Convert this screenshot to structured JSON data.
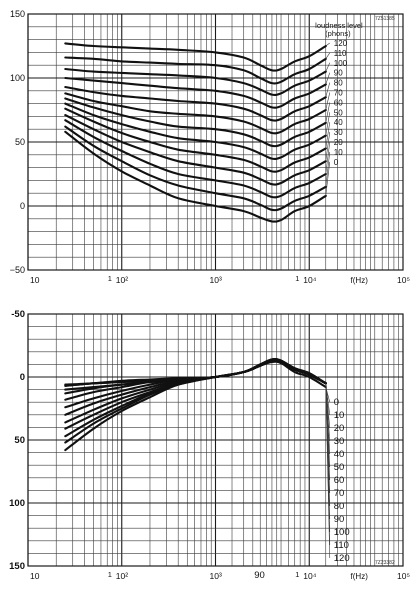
{
  "chart_data": [
    {
      "type": "line",
      "ref": "7Z51385",
      "legend_title_1": "loudness level",
      "legend_title_2": "(phons)",
      "xlabel": "f(Hz)",
      "xscale": "log",
      "xlim": [
        10,
        100000
      ],
      "ylim": [
        -50,
        150
      ],
      "grid": true,
      "x_tick_labels": [
        "10",
        "10²",
        "10³",
        "10⁴",
        "10⁵"
      ],
      "y_tick_labels": [
        "150",
        "100",
        "50",
        "0",
        "−50"
      ],
      "x": [
        25,
        50,
        100,
        200,
        400,
        1000,
        2000,
        3000,
        4000,
        5000,
        7000,
        10000,
        15000
      ],
      "series": [
        {
          "name": "120",
          "values": [
            127,
            125,
            124,
            123,
            122,
            120,
            116,
            110,
            106,
            107,
            113,
            117,
            125
          ]
        },
        {
          "name": "110",
          "values": [
            116,
            115,
            113,
            112,
            111,
            110,
            106,
            100,
            96,
            97,
            103,
            107,
            115
          ]
        },
        {
          "name": "100",
          "values": [
            107,
            105,
            104,
            103,
            102,
            100,
            96,
            91,
            87,
            88,
            94,
            98,
            105
          ]
        },
        {
          "name": "90",
          "values": [
            100,
            98,
            96,
            94,
            92,
            90,
            86,
            81,
            77,
            78,
            84,
            88,
            95
          ]
        },
        {
          "name": "80",
          "values": [
            93,
            89,
            86,
            84,
            82,
            80,
            76,
            71,
            67,
            68,
            74,
            78,
            85
          ]
        },
        {
          "name": "70",
          "values": [
            88,
            82,
            78,
            74,
            72,
            70,
            66,
            61,
            57,
            58,
            64,
            68,
            75
          ]
        },
        {
          "name": "60",
          "values": [
            84,
            77,
            71,
            66,
            62,
            60,
            56,
            51,
            47,
            48,
            54,
            58,
            65
          ]
        },
        {
          "name": "50",
          "values": [
            80,
            71,
            64,
            58,
            53,
            50,
            46,
            41,
            37,
            38,
            44,
            48,
            55
          ]
        },
        {
          "name": "40",
          "values": [
            76,
            66,
            57,
            50,
            44,
            40,
            36,
            31,
            27,
            28,
            34,
            38,
            45
          ]
        },
        {
          "name": "30",
          "values": [
            71,
            60,
            50,
            42,
            35,
            30,
            26,
            21,
            17,
            18,
            24,
            28,
            35
          ]
        },
        {
          "name": "20",
          "values": [
            67,
            54,
            43,
            33,
            25,
            20,
            16,
            11,
            7,
            8,
            14,
            18,
            25
          ]
        },
        {
          "name": "10",
          "values": [
            62,
            47,
            35,
            24,
            16,
            10,
            6,
            1,
            -3,
            -2,
            4,
            8,
            15
          ]
        },
        {
          "name": "0",
          "values": [
            58,
            41,
            27,
            16,
            6,
            0,
            -4,
            -9,
            -12,
            -11,
            -4,
            0,
            8
          ]
        }
      ]
    },
    {
      "type": "line",
      "ref": "7Z23382",
      "xlabel": "f(Hz)",
      "xscale": "log",
      "xlim": [
        10,
        100000
      ],
      "ylim": [
        150,
        -50
      ],
      "grid": true,
      "x_tick_labels": [
        "10",
        "10²",
        "10³",
        "10⁴",
        "10⁵"
      ],
      "y_tick_labels": [
        "-50",
        "0",
        "50",
        "100",
        "150"
      ],
      "annotation": "90",
      "x": [
        25,
        50,
        100,
        200,
        400,
        1000,
        2000,
        3000,
        4000,
        5000,
        7000,
        10000,
        15000
      ],
      "series": [
        {
          "name": "0",
          "values": [
            58,
            41,
            27,
            16,
            6,
            0,
            -4,
            -9,
            -12,
            -11,
            -4,
            0,
            8
          ]
        },
        {
          "name": "10",
          "values": [
            52,
            37,
            25,
            14,
            6,
            0,
            -4,
            -9,
            -13,
            -12,
            -6,
            -2,
            5
          ]
        },
        {
          "name": "20",
          "values": [
            47,
            34,
            23,
            13,
            5,
            0,
            -4,
            -9,
            -13,
            -12,
            -6,
            -2,
            5
          ]
        },
        {
          "name": "30",
          "values": [
            41,
            30,
            20,
            12,
            5,
            0,
            -4,
            -9,
            -13,
            -12,
            -6,
            -2,
            5
          ]
        },
        {
          "name": "40",
          "values": [
            36,
            26,
            17,
            10,
            4,
            0,
            -4,
            -9,
            -13,
            -12,
            -6,
            -2,
            5
          ]
        },
        {
          "name": "50",
          "values": [
            30,
            21,
            14,
            8,
            3,
            0,
            -4,
            -9,
            -13,
            -12,
            -6,
            -2,
            5
          ]
        },
        {
          "name": "60",
          "values": [
            24,
            17,
            11,
            6,
            2,
            0,
            -4,
            -9,
            -13,
            -12,
            -6,
            -2,
            5
          ]
        },
        {
          "name": "70",
          "values": [
            18,
            12,
            8,
            4,
            2,
            0,
            -4,
            -9,
            -13,
            -12,
            -6,
            -2,
            5
          ]
        },
        {
          "name": "80",
          "values": [
            13,
            9,
            6,
            4,
            2,
            0,
            -4,
            -9,
            -13,
            -12,
            -6,
            -2,
            5
          ]
        },
        {
          "name": "90",
          "values": [
            10,
            8,
            6,
            4,
            2,
            0,
            -4,
            -9,
            -13,
            -12,
            -6,
            -2,
            5
          ]
        },
        {
          "name": "100",
          "values": [
            7,
            5,
            4,
            3,
            2,
            0,
            -4,
            -9,
            -13,
            -12,
            -6,
            -2,
            5
          ]
        },
        {
          "name": "110",
          "values": [
            6,
            5,
            3,
            2,
            1,
            0,
            -4,
            -10,
            -14,
            -13,
            -7,
            -3,
            5
          ]
        },
        {
          "name": "120",
          "values": [
            7,
            5,
            4,
            3,
            2,
            0,
            -4,
            -10,
            -14,
            -13,
            -7,
            -3,
            5
          ]
        }
      ]
    }
  ]
}
